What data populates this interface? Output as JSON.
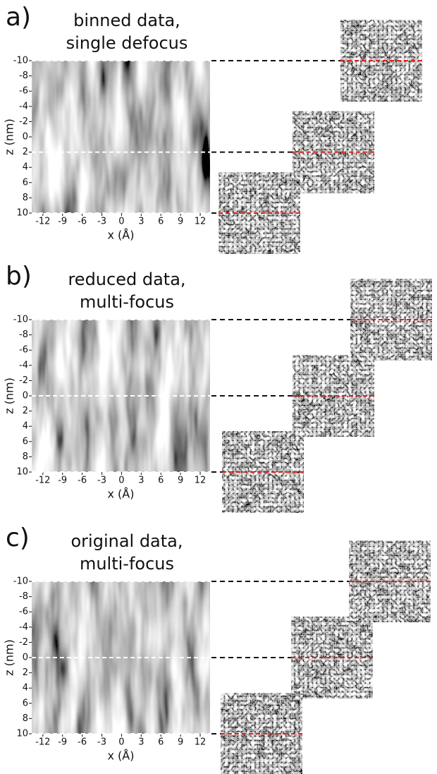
{
  "chart_data": [
    {
      "type": "image",
      "panel": "a)",
      "title": [
        "binned data,",
        "single defocus"
      ],
      "xlabel": "x (Å)",
      "ylabel": "z (nm)",
      "xlim": [
        -13.7,
        13.5
      ],
      "xticks": [
        -12,
        -9,
        -6,
        -3,
        0,
        3,
        6,
        9,
        12
      ],
      "ylim": [
        -10,
        10
      ],
      "yticks": [
        -10,
        -8,
        -6,
        -4,
        -2,
        0,
        2,
        4,
        6,
        8,
        10
      ],
      "slices": [
        -10,
        2,
        10
      ]
    },
    {
      "type": "image",
      "panel": "b)",
      "title": [
        "reduced data,",
        "multi-focus"
      ],
      "xlabel": "x (Å)",
      "ylabel": "z (nm)",
      "xlim": [
        -13.7,
        13.5
      ],
      "xticks": [
        -12,
        -9,
        -6,
        -3,
        0,
        3,
        6,
        9,
        12
      ],
      "ylim": [
        -10,
        10
      ],
      "yticks": [
        -10,
        -8,
        -6,
        -4,
        -2,
        0,
        2,
        4,
        6,
        8,
        10
      ],
      "slices": [
        -10,
        0,
        10
      ]
    },
    {
      "type": "image",
      "panel": "c)",
      "title": [
        "original data,",
        "multi-focus"
      ],
      "xlabel": "x (Å)",
      "ylabel": "z (nm)",
      "xlim": [
        -13.7,
        13.5
      ],
      "xticks": [
        -12,
        -9,
        -6,
        -3,
        0,
        3,
        6,
        9,
        12
      ],
      "ylim": [
        -10,
        10
      ],
      "yticks": [
        -10,
        -8,
        -6,
        -4,
        -2,
        0,
        2,
        4,
        6,
        8,
        10
      ],
      "slices": [
        -10,
        0,
        10
      ]
    }
  ]
}
